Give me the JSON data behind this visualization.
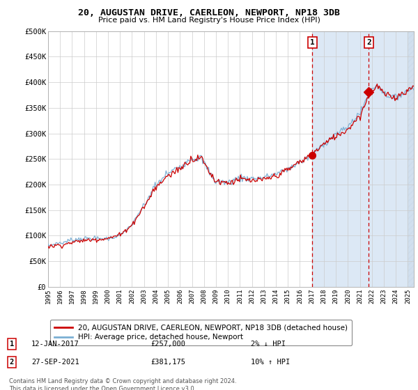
{
  "title": "20, AUGUSTAN DRIVE, CAERLEON, NEWPORT, NP18 3DB",
  "subtitle": "Price paid vs. HM Land Registry's House Price Index (HPI)",
  "ylim": [
    0,
    500000
  ],
  "yticks": [
    0,
    50000,
    100000,
    150000,
    200000,
    250000,
    300000,
    350000,
    400000,
    450000,
    500000
  ],
  "ytick_labels": [
    "£0",
    "£50K",
    "£100K",
    "£150K",
    "£200K",
    "£250K",
    "£300K",
    "£350K",
    "£400K",
    "£450K",
    "£500K"
  ],
  "xlim_start": 1995.0,
  "xlim_end": 2025.5,
  "xticks": [
    1995,
    1996,
    1997,
    1998,
    1999,
    2000,
    2001,
    2002,
    2003,
    2004,
    2005,
    2006,
    2007,
    2008,
    2009,
    2010,
    2011,
    2012,
    2013,
    2014,
    2015,
    2016,
    2017,
    2018,
    2019,
    2020,
    2021,
    2022,
    2023,
    2024,
    2025
  ],
  "sale1_x": 2017.04,
  "sale1_y": 257000,
  "sale1_label": "1",
  "sale1_date": "12-JAN-2017",
  "sale1_price": "£257,000",
  "sale1_hpi": "2% ↓ HPI",
  "sale2_x": 2021.75,
  "sale2_y": 381175,
  "sale2_label": "2",
  "sale2_date": "27-SEP-2021",
  "sale2_price": "£381,175",
  "sale2_hpi": "10% ↑ HPI",
  "hpi_color": "#7bafd4",
  "price_color": "#cc0000",
  "bg_color": "#dce8f5",
  "plot_bg": "#ffffff",
  "shaded_start": 2017.04,
  "legend_label1": "20, AUGUSTAN DRIVE, CAERLEON, NEWPORT, NP18 3DB (detached house)",
  "legend_label2": "HPI: Average price, detached house, Newport",
  "footer": "Contains HM Land Registry data © Crown copyright and database right 2024.\nThis data is licensed under the Open Government Licence v3.0."
}
